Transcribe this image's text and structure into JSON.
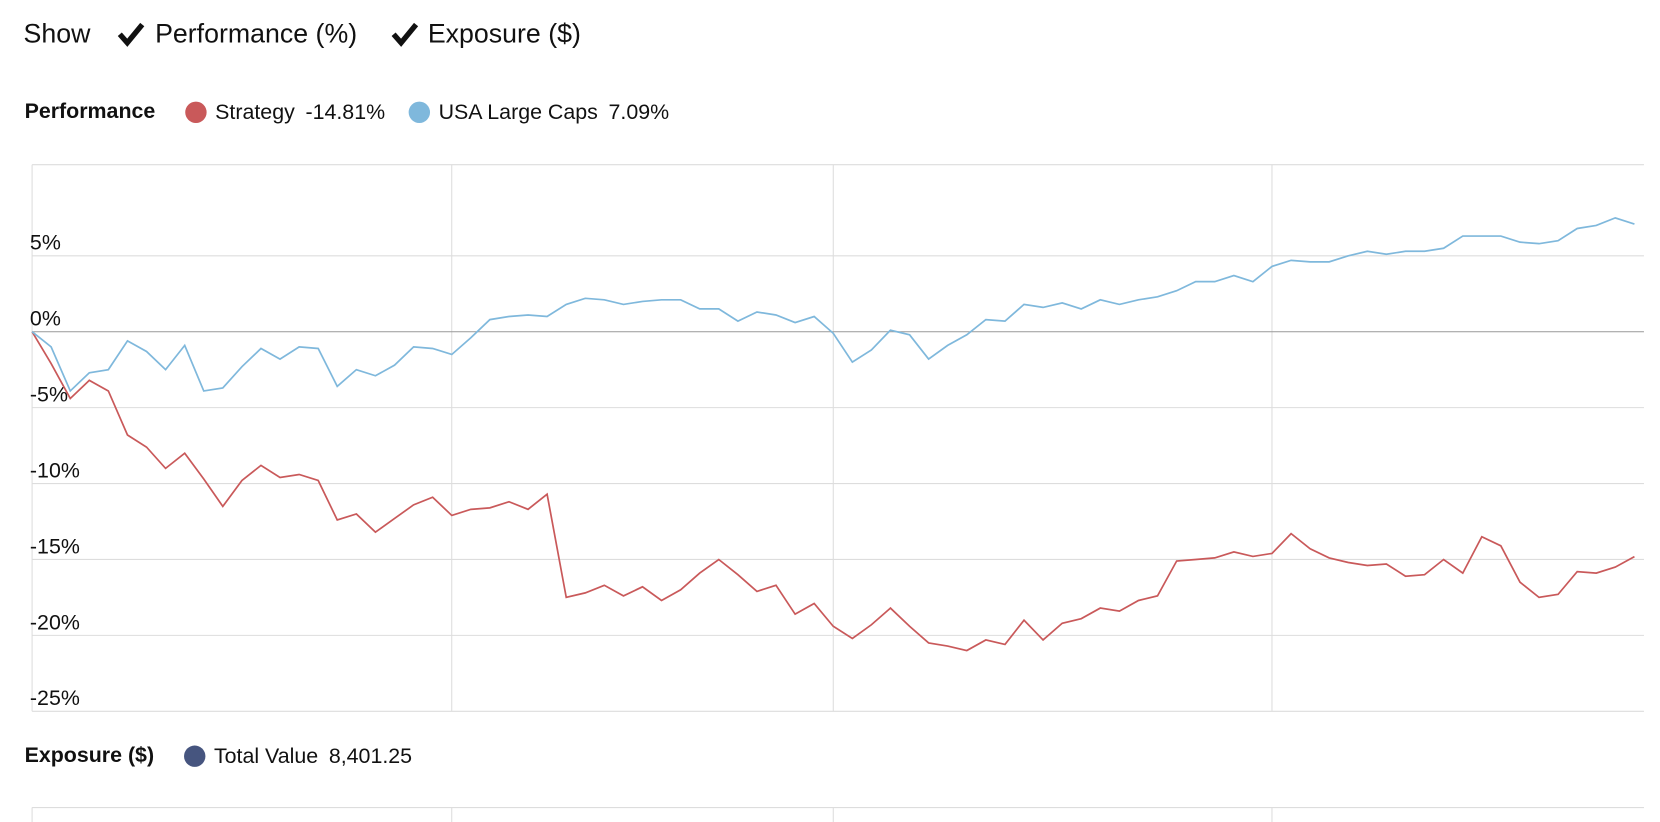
{
  "toolbar": {
    "label": "Show",
    "options": [
      "Performance (%)",
      "Exposure ($)"
    ]
  },
  "chart_data": [
    {
      "type": "line",
      "title": "Performance",
      "xlim": [
        0,
        84.5
      ],
      "xgrid": [
        22,
        42,
        65
      ],
      "ylim": [
        -25,
        11
      ],
      "yticks": [
        {
          "value": 5,
          "label": "5%"
        },
        {
          "value": 0,
          "label": "0%"
        },
        {
          "value": -5,
          "label": "-5%"
        },
        {
          "value": -10,
          "label": "-10%"
        },
        {
          "value": -15,
          "label": "-15%"
        },
        {
          "value": -20,
          "label": "-20%"
        },
        {
          "value": -25,
          "label": "-25%"
        }
      ],
      "series": [
        {
          "name": "Strategy",
          "color": "#c9595a",
          "summary": "-14.81%",
          "values": [
            0,
            -2.1,
            -4.4,
            -3.2,
            -3.9,
            -6.8,
            -7.6,
            -9.0,
            -8.0,
            -9.7,
            -11.5,
            -9.8,
            -8.8,
            -9.6,
            -9.4,
            -9.8,
            -12.4,
            -12.0,
            -13.2,
            -12.3,
            -11.4,
            -10.9,
            -12.1,
            -11.7,
            -11.6,
            -11.2,
            -11.7,
            -10.7,
            -17.5,
            -17.2,
            -16.7,
            -17.4,
            -16.8,
            -17.7,
            -17.0,
            -15.9,
            -15.0,
            -16.0,
            -17.1,
            -16.7,
            -18.6,
            -17.9,
            -19.4,
            -20.2,
            -19.3,
            -18.2,
            -19.4,
            -20.5,
            -20.7,
            -21.0,
            -20.3,
            -20.6,
            -19.0,
            -20.3,
            -19.2,
            -18.9,
            -18.2,
            -18.4,
            -17.7,
            -17.4,
            -15.1,
            -15.0,
            -14.9,
            -14.5,
            -14.8,
            -14.6,
            -13.3,
            -14.3,
            -14.9,
            -15.2,
            -15.4,
            -15.3,
            -16.1,
            -16.0,
            -15.0,
            -15.9,
            -13.5,
            -14.1,
            -16.5,
            -17.5,
            -17.3,
            -15.8,
            -15.9,
            -15.5,
            -14.81
          ]
        },
        {
          "name": "USA Large Caps",
          "color": "#7fb8dc",
          "summary": "7.09%",
          "values": [
            0,
            -1.0,
            -3.9,
            -2.7,
            -2.5,
            -0.6,
            -1.3,
            -2.5,
            -0.9,
            -3.9,
            -3.7,
            -2.3,
            -1.1,
            -1.8,
            -1.0,
            -1.1,
            -3.6,
            -2.5,
            -2.9,
            -2.2,
            -1.0,
            -1.1,
            -1.5,
            -0.4,
            0.8,
            1.0,
            1.1,
            1.0,
            1.8,
            2.2,
            2.1,
            1.8,
            2.0,
            2.1,
            2.1,
            1.5,
            1.5,
            0.7,
            1.3,
            1.1,
            0.6,
            1.0,
            -0.1,
            -2.0,
            -1.2,
            0.1,
            -0.2,
            -1.8,
            -0.9,
            -0.2,
            0.8,
            0.7,
            1.8,
            1.6,
            1.9,
            1.5,
            2.1,
            1.8,
            2.1,
            2.3,
            2.7,
            3.3,
            3.3,
            3.7,
            3.3,
            4.3,
            4.7,
            4.6,
            4.6,
            5.0,
            5.3,
            5.1,
            5.3,
            5.3,
            5.5,
            6.3,
            6.3,
            6.3,
            5.9,
            5.8,
            6.0,
            6.8,
            7.0,
            7.5,
            7.09
          ]
        }
      ]
    },
    {
      "type": "area",
      "title": "Exposure ($)",
      "xlim": [
        0,
        84.5
      ],
      "xgrid": [
        22,
        42,
        65
      ],
      "series": [
        {
          "name": "Total Value",
          "color": "#46557f",
          "summary": "8,401.25"
        }
      ]
    }
  ]
}
